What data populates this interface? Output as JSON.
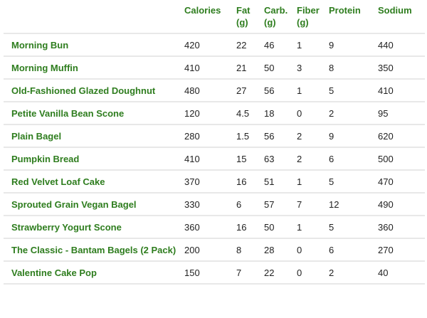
{
  "headers": [
    "",
    "Calories",
    "Fat (g)",
    "Carb. (g)",
    "Fiber (g)",
    "Protein",
    "Sodium"
  ],
  "rows": [
    [
      "Morning Bun",
      "420",
      "22",
      "46",
      "1",
      "9",
      "440"
    ],
    [
      "Morning Muffin",
      "410",
      "21",
      "50",
      "3",
      "8",
      "350"
    ],
    [
      "Old-Fashioned Glazed Doughnut",
      "480",
      "27",
      "56",
      "1",
      "5",
      "410"
    ],
    [
      "Petite Vanilla Bean Scone",
      "120",
      "4.5",
      "18",
      "0",
      "2",
      "95"
    ],
    [
      "Plain Bagel",
      "280",
      "1.5",
      "56",
      "2",
      "9",
      "620"
    ],
    [
      "Pumpkin Bread",
      "410",
      "15",
      "63",
      "2",
      "6",
      "500"
    ],
    [
      "Red Velvet Loaf Cake",
      "370",
      "16",
      "51",
      "1",
      "5",
      "470"
    ],
    [
      "Sprouted Grain Vegan Bagel",
      "330",
      "6",
      "57",
      "7",
      "12",
      "490"
    ],
    [
      "Strawberry Yogurt Scone",
      "360",
      "16",
      "50",
      "1",
      "5",
      "360"
    ],
    [
      "The Classic - Bantam Bagels (2 Pack)",
      "200",
      "8",
      "28",
      "0",
      "6",
      "270"
    ],
    [
      "Valentine Cake Pop",
      "150",
      "7",
      "22",
      "0",
      "2",
      "40"
    ]
  ],
  "colors": {
    "accent": "#2e7d1e",
    "text": "#222222",
    "divider": "#e8e8e8"
  }
}
